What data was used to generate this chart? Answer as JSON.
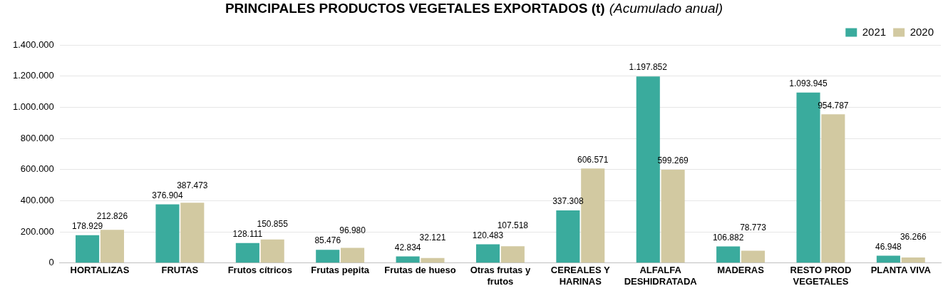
{
  "chart_data": {
    "type": "bar",
    "title": "PRINCIPALES PRODUCTOS VEGETALES EXPORTADOS (t)",
    "subtitle": "(Acumulado anual)",
    "categories": [
      "HORTALIZAS",
      "FRUTAS",
      "Frutos cítricos",
      "Frutas pepita",
      "Frutas de hueso",
      "Otras frutas y frutos",
      "CEREALES Y HARINAS",
      "ALFALFA DESHIDRATADA",
      "MADERAS",
      "RESTO PROD VEGETALES",
      "PLANTA VIVA"
    ],
    "series": [
      {
        "name": "2021",
        "color": "#3aab9d",
        "values": [
          178929,
          376904,
          128111,
          85476,
          42834,
          120483,
          337308,
          1197852,
          106882,
          1093945,
          46948
        ],
        "value_labels": [
          "178.929",
          "376.904",
          "128.111",
          "85.476",
          "42.834",
          "120.483",
          "337.308",
          "1.197.852",
          "106.882",
          "1.093.945",
          "46.948"
        ]
      },
      {
        "name": "2020",
        "color": "#d2c9a1",
        "values": [
          212826,
          387473,
          150855,
          96980,
          32121,
          107518,
          606571,
          599269,
          78773,
          954787,
          36266
        ],
        "value_labels": [
          "212.826",
          "387.473",
          "150.855",
          "96.980",
          "32.121",
          "107.518",
          "606.571",
          "599.269",
          "78.773",
          "954.787",
          "36.266"
        ]
      }
    ],
    "ylim": [
      0,
      1400000
    ],
    "yticks": [
      {
        "value": 0,
        "label": "0"
      },
      {
        "value": 200000,
        "label": "200.000"
      },
      {
        "value": 400000,
        "label": "400.000"
      },
      {
        "value": 600000,
        "label": "600.000"
      },
      {
        "value": 800000,
        "label": "800.000"
      },
      {
        "value": 1000000,
        "label": "1.000.000"
      },
      {
        "value": 1200000,
        "label": "1.200.000"
      },
      {
        "value": 1400000,
        "label": "1.400.000"
      }
    ],
    "grid": "y",
    "legend": "top right"
  }
}
